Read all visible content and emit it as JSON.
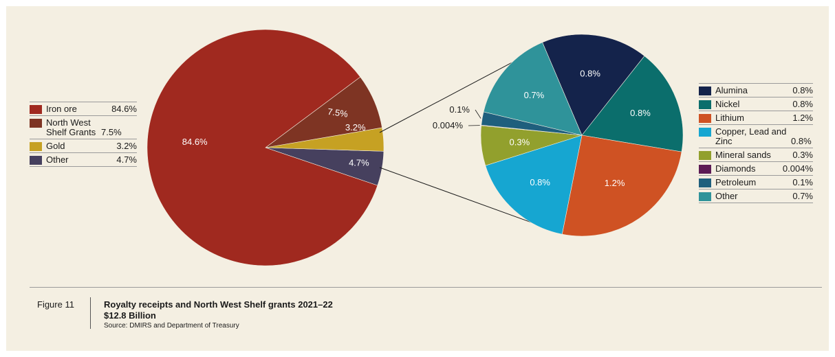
{
  "chart_data": [
    {
      "type": "pie",
      "categories": [
        "Iron ore",
        "North West Shelf Grants",
        "Gold",
        "Other"
      ],
      "values": [
        84.6,
        7.5,
        3.2,
        4.7
      ],
      "value_labels": [
        "84.6%",
        "7.5%",
        "3.2%",
        "4.7%"
      ],
      "colors": [
        "#a0291f",
        "#7e3423",
        "#c6a123",
        "#46405e"
      ],
      "legend": {
        "placement": "left",
        "items": [
          {
            "label": "Iron ore",
            "value": "84.6%",
            "color": "#a0291f"
          },
          {
            "label": "North West Shelf Grants",
            "value": "7.5%",
            "color": "#7e3423"
          },
          {
            "label": "Gold",
            "value": "3.2%",
            "color": "#c6a123"
          },
          {
            "label": "Other",
            "value": "4.7%",
            "color": "#46405e"
          }
        ]
      }
    },
    {
      "type": "pie",
      "categories": [
        "Alumina",
        "Nickel",
        "Lithium",
        "Copper, Lead and Zinc",
        "Mineral sands",
        "Diamonds",
        "Petroleum",
        "Other"
      ],
      "values": [
        0.8,
        0.8,
        1.2,
        0.8,
        0.3,
        0.004,
        0.1,
        0.7
      ],
      "value_labels": [
        "0.8%",
        "0.8%",
        "1.2%",
        "0.8%",
        "0.3%",
        "0.004%",
        "0.1%",
        "0.7%"
      ],
      "colors": [
        "#14234b",
        "#0b6e6c",
        "#cf5223",
        "#16a6d1",
        "#92a02d",
        "#5c1b55",
        "#1f5f7d",
        "#2f939a"
      ],
      "legend": {
        "placement": "right",
        "items": [
          {
            "label": "Alumina",
            "value": "0.8%",
            "color": "#14234b"
          },
          {
            "label": "Nickel",
            "value": "0.8%",
            "color": "#0b6e6c"
          },
          {
            "label": "Lithium",
            "value": "1.2%",
            "color": "#cf5223"
          },
          {
            "label": "Copper, Lead and Zinc",
            "value": "0.8%",
            "color": "#16a6d1"
          },
          {
            "label": "Mineral sands",
            "value": "0.3%",
            "color": "#92a02d"
          },
          {
            "label": "Diamonds",
            "value": "0.004%",
            "color": "#5c1b55"
          },
          {
            "label": "Petroleum",
            "value": "0.1%",
            "color": "#1f5f7d"
          },
          {
            "label": "Other",
            "value": "0.7%",
            "color": "#2f939a"
          }
        ]
      }
    }
  ],
  "caption": {
    "figure_label": "Figure 11",
    "title": "Royalty receipts and North West Shelf grants 2021–22",
    "total": "$12.8 Billion",
    "source": "Source: DMIRS and Department of Treasury"
  }
}
